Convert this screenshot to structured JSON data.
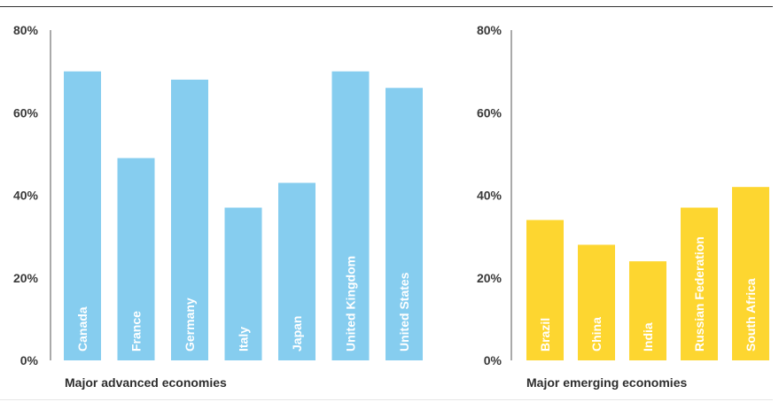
{
  "chart_data": [
    {
      "type": "bar",
      "color": "#86cdef",
      "title": "Major advanced economies",
      "xlabel": "Major advanced economies",
      "ylabel": "",
      "ylim": [
        0,
        80
      ],
      "yticks": [
        "0%",
        "20%",
        "40%",
        "60%",
        "80%"
      ],
      "categories": [
        "Canada",
        "France",
        "Germany",
        "Italy",
        "Japan",
        "United Kingdom",
        "United States"
      ],
      "values": [
        70,
        49,
        68,
        37,
        43,
        70,
        66
      ]
    },
    {
      "type": "bar",
      "color": "#fdd630",
      "title": "Major emerging economies",
      "xlabel": "Major emerging economies",
      "ylabel": "",
      "ylim": [
        0,
        80
      ],
      "yticks": [
        "0%",
        "20%",
        "40%",
        "60%",
        "80%"
      ],
      "categories": [
        "Brazil",
        "China",
        "India",
        "Russian Federation",
        "South Africa"
      ],
      "values": [
        34,
        28,
        24,
        37,
        42
      ]
    }
  ]
}
